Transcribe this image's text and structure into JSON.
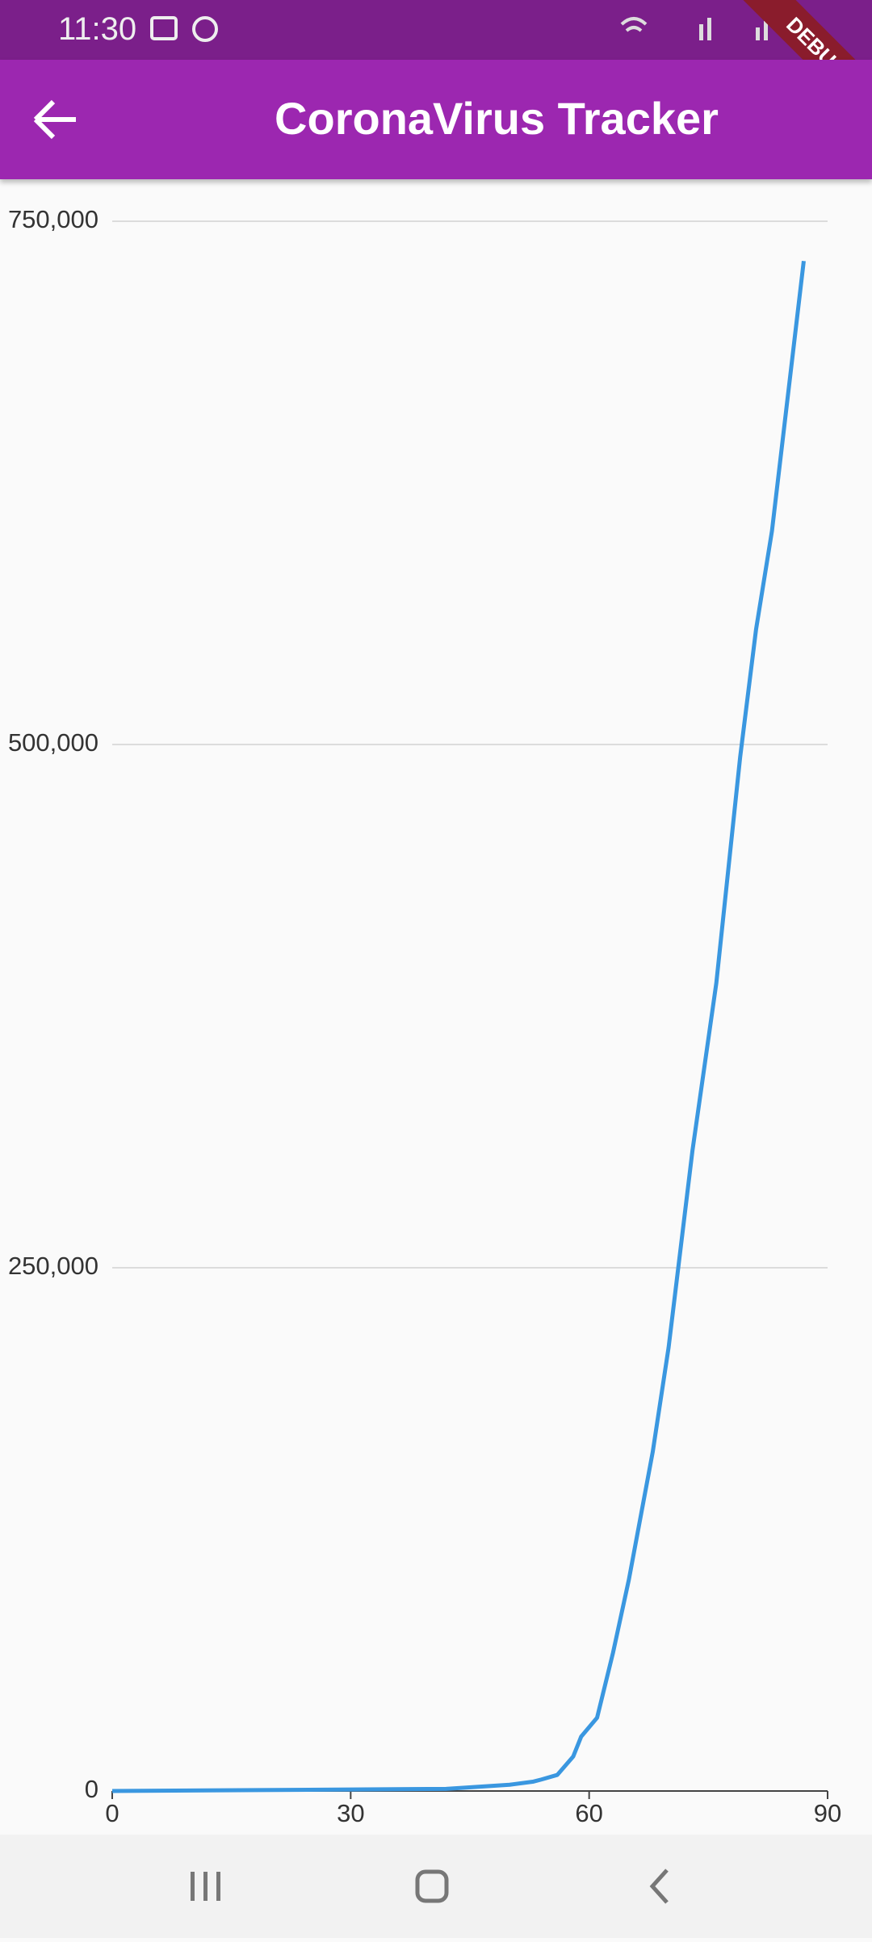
{
  "status_bar": {
    "time": "11:30"
  },
  "app_bar": {
    "title": "CoronaVirus Tracker"
  },
  "debug_banner": "DEBUG",
  "chart_data": {
    "type": "line",
    "x": [
      0,
      42,
      50,
      53,
      54,
      56,
      58,
      59,
      61,
      63,
      65,
      68,
      70,
      73,
      76,
      79,
      81,
      83,
      87
    ],
    "values": [
      0,
      1000,
      3000,
      4500,
      5500,
      7700,
      16500,
      26000,
      35000,
      66000,
      101000,
      162000,
      212000,
      306000,
      386000,
      494000,
      555000,
      602000,
      731000
    ],
    "color": "#3a97e0",
    "xlim": [
      0,
      90
    ],
    "xticks": [
      0,
      30,
      60,
      90
    ],
    "ylim": [
      0,
      750000
    ],
    "yticks": [
      0,
      {
        "value": 250000,
        "label": "250,000"
      },
      {
        "value": 500000,
        "label": "500,000"
      },
      {
        "value": 750000,
        "label": "750,000"
      }
    ],
    "grid": true
  }
}
